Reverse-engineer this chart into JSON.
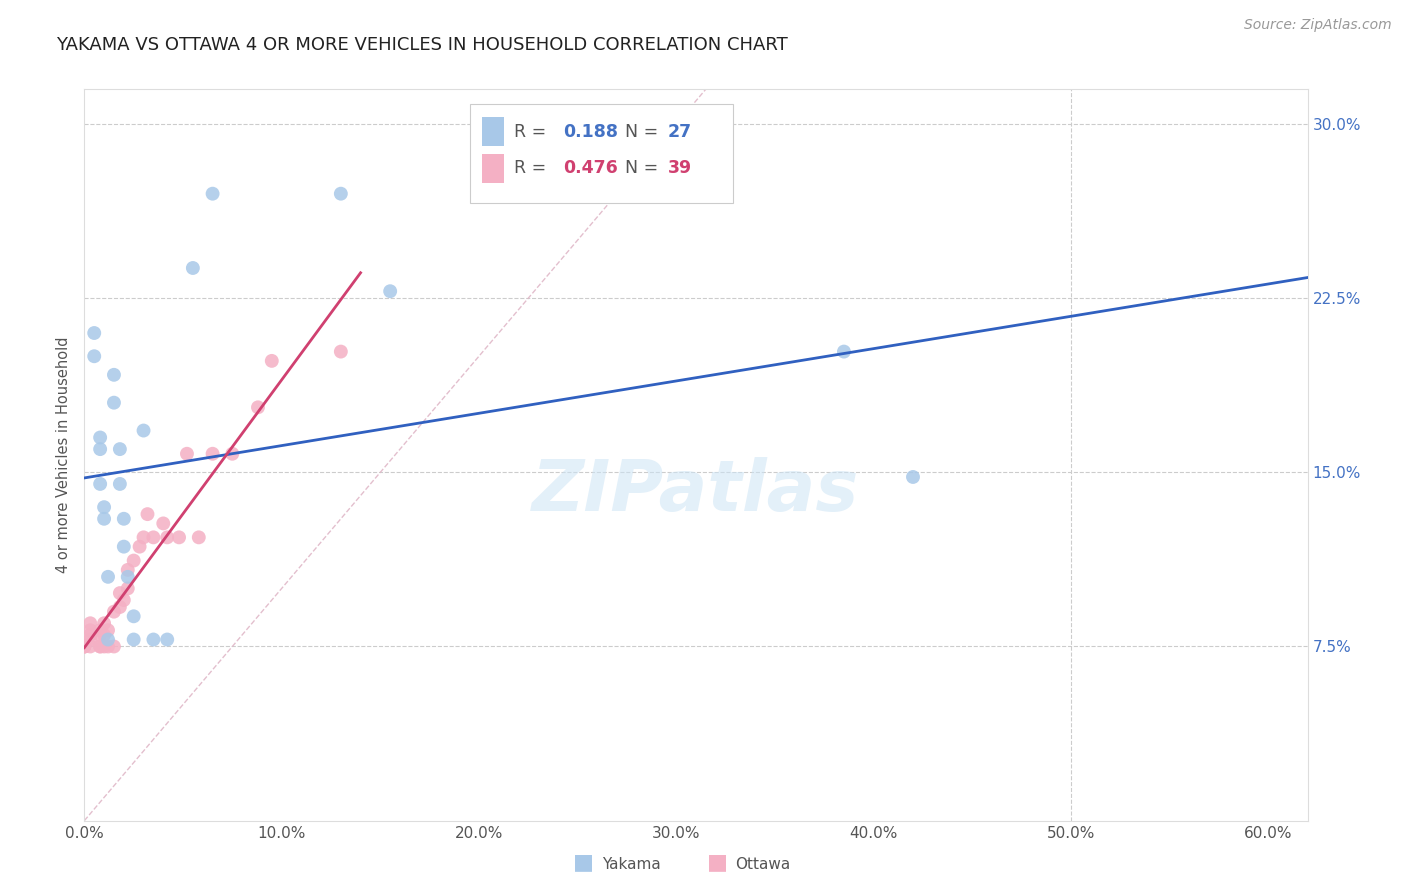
{
  "title": "YAKAMA VS OTTAWA 4 OR MORE VEHICLES IN HOUSEHOLD CORRELATION CHART",
  "source": "Source: ZipAtlas.com",
  "ylabel": "4 or more Vehicles in Household",
  "xlabel_ticks": [
    "0.0%",
    "10.0%",
    "20.0%",
    "30.0%",
    "40.0%",
    "50.0%",
    "60.0%"
  ],
  "xlabel_vals": [
    0.0,
    0.1,
    0.2,
    0.3,
    0.4,
    0.5,
    0.6
  ],
  "ytick_labels": [
    "7.5%",
    "15.0%",
    "22.5%",
    "30.0%"
  ],
  "ytick_vals": [
    0.075,
    0.15,
    0.225,
    0.3
  ],
  "xlim": [
    0.0,
    0.62
  ],
  "ylim": [
    0.0,
    0.315
  ],
  "yakama_R": 0.188,
  "yakama_N": 27,
  "ottawa_R": 0.476,
  "ottawa_N": 39,
  "yakama_color": "#a8c8e8",
  "ottawa_color": "#f4b0c4",
  "yakama_line_color": "#3060c0",
  "ottawa_line_color": "#d04070",
  "diagonal_color": "#e0b8c8",
  "watermark": "ZIPatlas",
  "yakama_x": [
    0.005,
    0.005,
    0.008,
    0.008,
    0.008,
    0.01,
    0.01,
    0.012,
    0.012,
    0.015,
    0.015,
    0.018,
    0.018,
    0.02,
    0.02,
    0.022,
    0.025,
    0.025,
    0.03,
    0.035,
    0.042,
    0.055,
    0.065,
    0.13,
    0.155,
    0.385,
    0.42
  ],
  "yakama_y": [
    0.21,
    0.2,
    0.165,
    0.16,
    0.145,
    0.135,
    0.13,
    0.105,
    0.078,
    0.192,
    0.18,
    0.16,
    0.145,
    0.13,
    0.118,
    0.105,
    0.088,
    0.078,
    0.168,
    0.078,
    0.078,
    0.238,
    0.27,
    0.27,
    0.228,
    0.202,
    0.148
  ],
  "ottawa_x": [
    0.0,
    0.0,
    0.0,
    0.003,
    0.003,
    0.003,
    0.003,
    0.003,
    0.008,
    0.008,
    0.008,
    0.008,
    0.01,
    0.01,
    0.01,
    0.012,
    0.012,
    0.015,
    0.015,
    0.018,
    0.018,
    0.02,
    0.022,
    0.022,
    0.025,
    0.028,
    0.03,
    0.032,
    0.035,
    0.04,
    0.042,
    0.048,
    0.052,
    0.058,
    0.065,
    0.075,
    0.088,
    0.095,
    0.13
  ],
  "ottawa_y": [
    0.075,
    0.075,
    0.075,
    0.075,
    0.078,
    0.08,
    0.082,
    0.085,
    0.075,
    0.075,
    0.08,
    0.082,
    0.075,
    0.08,
    0.085,
    0.075,
    0.082,
    0.075,
    0.09,
    0.092,
    0.098,
    0.095,
    0.1,
    0.108,
    0.112,
    0.118,
    0.122,
    0.132,
    0.122,
    0.128,
    0.122,
    0.122,
    0.158,
    0.122,
    0.158,
    0.158,
    0.178,
    0.198,
    0.202
  ],
  "legend_yakama_text": "R = 0.188   N = 27",
  "legend_ottawa_text": "R = 0.476   N = 39"
}
